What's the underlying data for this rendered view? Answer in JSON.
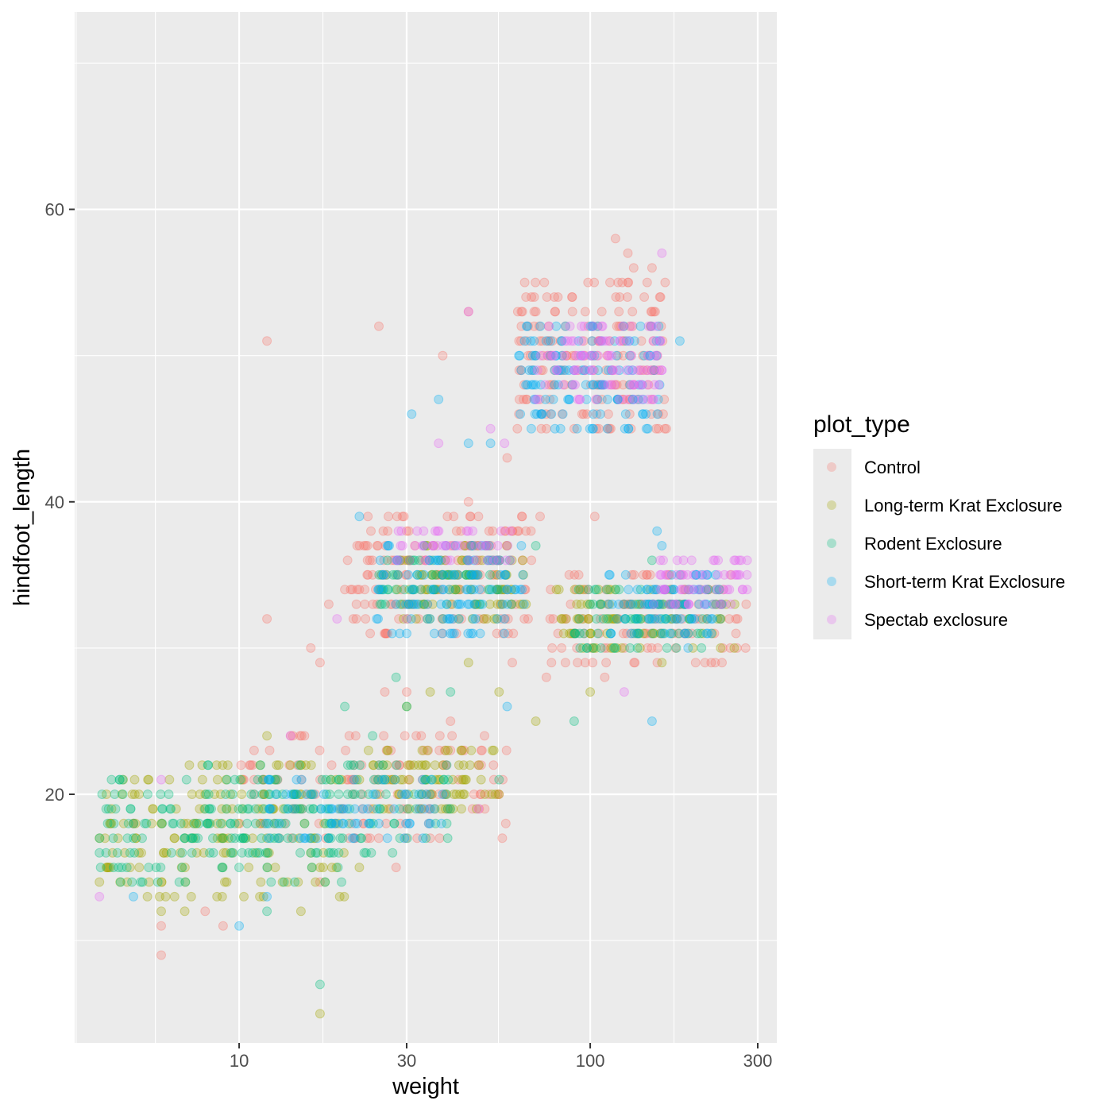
{
  "chart_data": {
    "type": "scatter",
    "title": "",
    "xlabel": "weight",
    "ylabel": "hindfoot_length",
    "x_scale": "log10",
    "xlim": [
      3.4,
      340
    ],
    "ylim": [
      3,
      73.5
    ],
    "x_ticks": [
      10,
      30,
      100,
      300
    ],
    "x_tick_labels": [
      "10",
      "30",
      "100",
      "300"
    ],
    "y_ticks": [
      20,
      40,
      60
    ],
    "y_tick_labels": [
      "20",
      "40",
      "60"
    ],
    "grid": true,
    "point_alpha": 0.28,
    "legend": {
      "title": "plot_type",
      "placement": "right"
    },
    "series": [
      {
        "name": "Control",
        "color": "#F8766D",
        "points": [
          [
            12,
            51
          ],
          [
            25,
            52
          ],
          [
            38,
            50
          ],
          [
            45,
            53
          ],
          [
            58,
            43
          ],
          [
            62,
            45
          ],
          [
            72,
            39
          ],
          [
            90,
            45
          ],
          [
            103,
            39
          ],
          [
            118,
            58
          ],
          [
            128,
            57
          ],
          [
            133,
            56
          ],
          [
            150,
            56
          ],
          [
            12,
            32
          ],
          [
            16,
            30
          ],
          [
            17,
            29
          ],
          [
            18,
            33
          ],
          [
            20,
            34
          ],
          [
            22,
            34
          ],
          [
            24,
            35
          ],
          [
            27,
            33
          ],
          [
            30,
            38
          ],
          [
            35,
            36
          ],
          [
            40,
            37
          ],
          [
            45,
            40
          ],
          [
            52,
            36
          ],
          [
            60,
            38
          ],
          [
            68,
            36
          ],
          [
            26,
            27
          ],
          [
            30,
            27
          ],
          [
            33,
            24
          ],
          [
            40,
            25
          ],
          [
            50,
            24
          ],
          [
            60,
            29
          ],
          [
            75,
            28
          ],
          [
            85,
            29
          ],
          [
            92,
            29
          ],
          [
            110,
            28
          ],
          [
            125,
            33
          ],
          [
            145,
            35
          ],
          [
            180,
            33
          ],
          [
            260,
            32
          ],
          [
            278,
            33
          ],
          [
            5,
            18
          ],
          [
            6,
            11
          ],
          [
            6,
            9
          ],
          [
            8,
            12
          ],
          [
            9,
            11
          ],
          [
            17,
            14
          ],
          [
            25,
            22
          ],
          [
            28,
            15
          ],
          [
            35,
            17
          ],
          [
            40,
            23
          ],
          [
            48,
            22
          ],
          [
            55,
            20
          ]
        ],
        "clusters": [
          {
            "x": [
              62,
              165
            ],
            "y": [
              45,
              55
            ]
          },
          {
            "x": [
              20,
              68
            ],
            "y": [
              31,
              39
            ]
          },
          {
            "x": [
              76,
              278
            ],
            "y": [
              29,
              35
            ]
          },
          {
            "x": [
              10,
              58
            ],
            "y": [
              17,
              24
            ]
          }
        ]
      },
      {
        "name": "Long-term Krat Exclosure",
        "color": "#A3A500",
        "points": [
          [
            4,
            17
          ],
          [
            4,
            14
          ],
          [
            5,
            18
          ],
          [
            6,
            12
          ],
          [
            7,
            12
          ],
          [
            12,
            24
          ],
          [
            15,
            12
          ],
          [
            16,
            17
          ],
          [
            17,
            15
          ],
          [
            22,
            15
          ],
          [
            30,
            26
          ],
          [
            35,
            27
          ],
          [
            45,
            29
          ],
          [
            55,
            27
          ],
          [
            70,
            25
          ],
          [
            100,
            27
          ],
          [
            160,
            29
          ],
          [
            17,
            5
          ],
          [
            8,
            20
          ],
          [
            14,
            22
          ]
        ],
        "clusters": [
          {
            "x": [
              4,
              20
            ],
            "y": [
              13,
              22
            ]
          },
          {
            "x": [
              22,
              55
            ],
            "y": [
              19,
              23
            ]
          },
          {
            "x": [
              80,
              260
            ],
            "y": [
              30,
              34
            ]
          },
          {
            "x": [
              28,
              66
            ],
            "y": [
              32,
              37
            ]
          }
        ]
      },
      {
        "name": "Rodent Exclosure",
        "color": "#00BF7D",
        "points": [
          [
            4,
            16
          ],
          [
            5,
            17
          ],
          [
            7,
            17
          ],
          [
            12,
            12
          ],
          [
            17,
            7
          ],
          [
            18,
            17
          ],
          [
            20,
            26
          ],
          [
            24,
            24
          ],
          [
            28,
            28
          ],
          [
            30,
            26
          ],
          [
            40,
            27
          ],
          [
            55,
            21
          ],
          [
            70,
            37
          ],
          [
            90,
            25
          ],
          [
            150,
            36
          ],
          [
            8,
            19
          ]
        ],
        "clusters": [
          {
            "x": [
              4,
              20
            ],
            "y": [
              14,
              21
            ]
          },
          {
            "x": [
              8,
              40
            ],
            "y": [
              16,
              22
            ]
          },
          {
            "x": [
              90,
              240
            ],
            "y": [
              30,
              34
            ]
          },
          {
            "x": [
              25,
              60
            ],
            "y": [
              33,
              36
            ]
          }
        ]
      },
      {
        "name": "Short-term Krat Exclosure",
        "color": "#00B0F6",
        "points": [
          [
            5,
            13
          ],
          [
            10,
            11
          ],
          [
            12,
            13
          ],
          [
            22,
            39
          ],
          [
            30,
            31
          ],
          [
            31,
            46
          ],
          [
            37,
            47
          ],
          [
            45,
            44
          ],
          [
            52,
            44
          ],
          [
            58,
            26
          ],
          [
            65,
            51
          ],
          [
            80,
            52
          ],
          [
            112,
            45
          ],
          [
            150,
            25
          ],
          [
            155,
            38
          ],
          [
            160,
            37
          ],
          [
            180,
            51
          ],
          [
            190,
            30
          ],
          [
            18,
            17
          ],
          [
            25,
            18
          ]
        ],
        "clusters": [
          {
            "x": [
              62,
              160
            ],
            "y": [
              45,
              52
            ]
          },
          {
            "x": [
              24,
              65
            ],
            "y": [
              31,
              37
            ]
          },
          {
            "x": [
              110,
              230
            ],
            "y": [
              31,
              35
            ]
          },
          {
            "x": [
              12,
              38
            ],
            "y": [
              17,
              21
            ]
          }
        ]
      },
      {
        "name": "Spectab exclosure",
        "color": "#E76BF3",
        "points": [
          [
            4,
            13
          ],
          [
            6,
            21
          ],
          [
            14,
            24
          ],
          [
            19,
            32
          ],
          [
            30,
            32
          ],
          [
            37,
            44
          ],
          [
            45,
            53
          ],
          [
            52,
            45
          ],
          [
            57,
            44
          ],
          [
            70,
            47
          ],
          [
            125,
            27
          ],
          [
            160,
            57
          ],
          [
            160,
            49
          ],
          [
            280,
            36
          ],
          [
            48,
            19
          ],
          [
            34,
            36
          ]
        ],
        "clusters": [
          {
            "x": [
              70,
              160
            ],
            "y": [
              47,
              52
            ]
          },
          {
            "x": [
              28,
              60
            ],
            "y": [
              36,
              38
            ]
          },
          {
            "x": [
              150,
              280
            ],
            "y": [
              33,
              36
            ]
          }
        ]
      }
    ]
  }
}
